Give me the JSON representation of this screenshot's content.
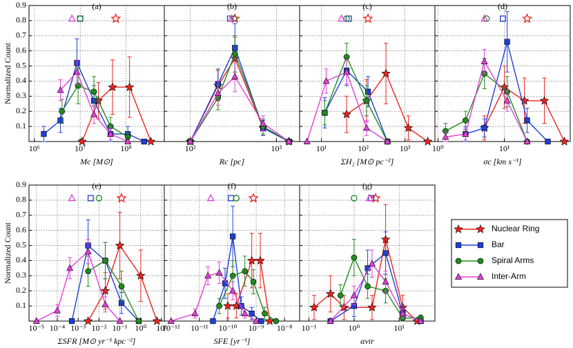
{
  "chart_data": [
    {
      "type": "line",
      "title": "(a)",
      "xlabel": "Mc [M⊙]",
      "ylabel": "Normalized Count",
      "xscale": "log",
      "xlim": [
        760000,
        690000000
      ],
      "xticks": [
        {
          "value": 1000000,
          "label": "10⁶"
        },
        {
          "value": 10000000,
          "label": "10⁷"
        },
        {
          "value": 100000000,
          "label": "10⁸"
        }
      ],
      "ylim": [
        0,
        0.9
      ],
      "yticks": [
        0.1,
        0.2,
        0.3,
        0.4,
        0.5,
        0.6,
        0.7,
        0.8,
        0.9
      ],
      "grid": true,
      "series": [
        {
          "color": "#e8241f",
          "marker": "star",
          "x": [
            11000000,
            25000000,
            51000000,
            120000000,
            350000000
          ],
          "values": [
            0,
            0.27,
            0.36,
            0.36,
            0
          ],
          "errors": [
            0,
            0.12,
            0.18,
            0.2,
            0
          ],
          "median": 60000000
        },
        {
          "color": "#1f3fd6",
          "marker": "square",
          "x": [
            1600000,
            3700000,
            8500000,
            20000000,
            46000000,
            110000000,
            250000000
          ],
          "values": [
            0.05,
            0.14,
            0.52,
            0.27,
            0.05,
            0.05,
            0
          ],
          "errors": [
            0.05,
            0.08,
            0.16,
            0.1,
            0.05,
            0.05,
            0
          ],
          "median": 10000000
        },
        {
          "color": "#1f8a1f",
          "marker": "circle",
          "x": [
            4000000,
            9000000,
            20000000,
            46000000,
            110000000
          ],
          "values": [
            0.2,
            0.37,
            0.33,
            0.1,
            0.03
          ],
          "errors": [
            0.08,
            0.12,
            0.1,
            0.06,
            0.03
          ],
          "median": 10000000
        },
        {
          "color": "#e23fd8",
          "marker": "triangle",
          "x": [
            3700000,
            8500000,
            20000000,
            46000000,
            110000000
          ],
          "values": [
            0.34,
            0.46,
            0.18,
            0.05,
            0
          ],
          "errors": [
            0.07,
            0.08,
            0.06,
            0.04,
            0
          ],
          "median": 6600000
        }
      ]
    },
    {
      "type": "line",
      "title": "(b)",
      "xlabel": "Rc [pc]",
      "xscale": "log",
      "xlim": [
        50,
        1860
      ],
      "xticks": [
        {
          "value": 100,
          "label": "10²"
        },
        {
          "value": 1000,
          "label": "10³"
        }
      ],
      "ylim": [
        0,
        0.9
      ],
      "yticks": [
        0.1,
        0.2,
        0.3,
        0.4,
        0.5,
        0.6,
        0.7,
        0.8,
        0.9
      ],
      "grid": true,
      "series": [
        {
          "color": "#e8241f",
          "marker": "star",
          "x": [
            100,
            210,
            330,
            700,
            1400
          ],
          "values": [
            0,
            0.37,
            0.55,
            0.09,
            0
          ],
          "errors": [
            0,
            0.1,
            0.14,
            0.05,
            0
          ],
          "median": 330
        },
        {
          "color": "#1f3fd6",
          "marker": "square",
          "x": [
            100,
            210,
            330,
            700,
            1400
          ],
          "values": [
            0,
            0.38,
            0.62,
            0.09,
            0
          ],
          "errors": [
            0,
            0.1,
            0.16,
            0.05,
            0
          ],
          "median": 290
        },
        {
          "color": "#1f8a1f",
          "marker": "circle",
          "x": [
            100,
            210,
            330,
            700,
            1400
          ],
          "values": [
            0,
            0.29,
            0.58,
            0.1,
            0
          ],
          "errors": [
            0,
            0.08,
            0.12,
            0.05,
            0
          ],
          "median": 320
        },
        {
          "color": "#e23fd8",
          "marker": "triangle",
          "x": [
            100,
            210,
            330,
            700,
            1400
          ],
          "values": [
            0,
            0.32,
            0.43,
            0.12,
            0
          ],
          "errors": [
            0,
            0.08,
            0.1,
            0.05,
            0
          ],
          "median": 300
        }
      ]
    },
    {
      "type": "line",
      "title": "(c)",
      "xlabel": "ΣH₂ [M⊙ pc⁻²]",
      "xscale": "log",
      "xlim": [
        3,
        5200
      ],
      "xticks": [
        {
          "value": 10,
          "label": "10¹"
        },
        {
          "value": 100,
          "label": "10²"
        },
        {
          "value": 1000,
          "label": "10³"
        }
      ],
      "ylim": [
        0,
        0.9
      ],
      "yticks": [
        0.1,
        0.2,
        0.3,
        0.4,
        0.5,
        0.6,
        0.7,
        0.8,
        0.9
      ],
      "grid": true,
      "series": [
        {
          "color": "#e8241f",
          "marker": "star",
          "x": [
            40,
            120,
            350,
            1200,
            3500
          ],
          "values": [
            0.18,
            0.27,
            0.45,
            0.09,
            0
          ],
          "errors": [
            0.12,
            0.14,
            0.2,
            0.08,
            0
          ],
          "median": 130
        },
        {
          "color": "#1f3fd6",
          "marker": "square",
          "x": [
            12,
            40,
            130,
            380
          ],
          "values": [
            0.19,
            0.47,
            0.33,
            0
          ],
          "errors": [
            0.1,
            0.1,
            0.1,
            0
          ],
          "median": 45
        },
        {
          "color": "#1f8a1f",
          "marker": "circle",
          "x": [
            12,
            40,
            120,
            380
          ],
          "values": [
            0.19,
            0.56,
            0.27,
            0
          ],
          "errors": [
            0.08,
            0.09,
            0.1,
            0
          ],
          "median": 40
        },
        {
          "color": "#e23fd8",
          "marker": "triangle",
          "x": [
            4.5,
            13,
            40,
            120,
            380
          ],
          "values": [
            0,
            0.4,
            0.46,
            0.09,
            0
          ],
          "errors": [
            0,
            0.08,
            0.08,
            0.05,
            0
          ],
          "median": 30
        }
      ]
    },
    {
      "type": "line",
      "title": "(d)",
      "xlabel": "σc [km s⁻¹]",
      "xscale": "log",
      "xlim": [
        0.9,
        98
      ],
      "xticks": [
        {
          "value": 1,
          "label": "10⁰"
        },
        {
          "value": 10,
          "label": "10¹"
        }
      ],
      "ylim": [
        0,
        0.9
      ],
      "yticks": [
        0.1,
        0.2,
        0.3,
        0.4,
        0.5,
        0.6,
        0.7,
        0.8,
        0.9
      ],
      "grid": true,
      "series": [
        {
          "color": "#e8241f",
          "marker": "star",
          "x": [
            5,
            10,
            20,
            40,
            80
          ],
          "values": [
            0.09,
            0.36,
            0.27,
            0.27,
            0
          ],
          "errors": [
            0.08,
            0.14,
            0.15,
            0.15,
            0
          ],
          "median": 22
        },
        {
          "color": "#1f3fd6",
          "marker": "square",
          "x": [
            2.6,
            5,
            11,
            22,
            45
          ],
          "values": [
            0.05,
            0.09,
            0.66,
            0.14,
            0
          ],
          "errors": [
            0.05,
            0.06,
            0.2,
            0.08,
            0
          ],
          "median": 9.5
        },
        {
          "color": "#1f8a1f",
          "marker": "circle",
          "x": [
            1.3,
            2.6,
            5,
            11,
            22
          ],
          "values": [
            0.07,
            0.14,
            0.45,
            0.33,
            0
          ],
          "errors": [
            0.05,
            0.06,
            0.1,
            0.1,
            0
          ],
          "median": 5.4
        },
        {
          "color": "#e23fd8",
          "marker": "triangle",
          "x": [
            1.3,
            2.6,
            5,
            11,
            22
          ],
          "values": [
            0.03,
            0.05,
            0.53,
            0.27,
            0
          ],
          "errors": [
            0.03,
            0.04,
            0.08,
            0.07,
            0
          ],
          "median": 5
        }
      ]
    },
    {
      "type": "line",
      "title": "(e)",
      "xlabel": "ΣSFR [M⊙ yr⁻¹ kpc⁻²]",
      "ylabel": "Normalized Count",
      "xscale": "log",
      "xlim": [
        4.4e-06,
        13.5
      ],
      "xticks": [
        {
          "value": 1e-05,
          "label": "10⁻⁵"
        },
        {
          "value": 0.0001,
          "label": "10⁻⁴"
        },
        {
          "value": 0.001,
          "label": "10⁻³"
        },
        {
          "value": 0.01,
          "label": "10⁻²"
        },
        {
          "value": 0.1,
          "label": "10⁻¹"
        },
        {
          "value": 1,
          "label": "10⁰"
        },
        {
          "value": 10,
          "label": "10¹"
        }
      ],
      "ylim": [
        0,
        0.9
      ],
      "yticks": [
        0.1,
        0.2,
        0.3,
        0.4,
        0.5,
        0.6,
        0.7,
        0.8,
        0.9
      ],
      "grid": true,
      "series": [
        {
          "color": "#e8241f",
          "marker": "star",
          "x": [
            0.003,
            0.02,
            0.1,
            1,
            6
          ],
          "values": [
            0,
            0.2,
            0.5,
            0.3,
            0
          ],
          "errors": [
            0,
            0.12,
            0.22,
            0.17,
            0
          ],
          "median": 0.12
        },
        {
          "color": "#1f3fd6",
          "marker": "square",
          "x": [
            0.0005,
            0.003,
            0.02,
            0.12,
            0.8
          ],
          "values": [
            0,
            0.5,
            0.4,
            0.12,
            0
          ],
          "errors": [
            0,
            0.17,
            0.12,
            0.07,
            0
          ],
          "median": 0.004
        },
        {
          "color": "#1f8a1f",
          "marker": "circle",
          "x": [
            0.003,
            0.02,
            0.12,
            0.8
          ],
          "values": [
            0.33,
            0.4,
            0.23,
            0
          ],
          "errors": [
            0.1,
            0.12,
            0.1,
            0
          ],
          "median": 0.01
        },
        {
          "color": "#e23fd8",
          "marker": "triangle",
          "x": [
            1e-05,
            0.0001,
            0.0004,
            0.003,
            0.02,
            0.1
          ],
          "values": [
            0,
            0.07,
            0.35,
            0.46,
            0.11,
            0
          ],
          "errors": [
            0,
            0.04,
            0.07,
            0.08,
            0.05,
            0
          ],
          "median": 0.0005
        }
      ]
    },
    {
      "type": "line",
      "title": "(f)",
      "xlabel": "SFE [yr⁻¹]",
      "xscale": "log",
      "xlim": [
        5.8e-13,
        3.4e-08
      ],
      "xticks": [
        {
          "value": 1e-12,
          "label": "10⁻¹²"
        },
        {
          "value": 1e-11,
          "label": "10⁻¹¹"
        },
        {
          "value": 1e-10,
          "label": "10⁻¹⁰"
        },
        {
          "value": 1e-09,
          "label": "10⁻⁹"
        },
        {
          "value": 1e-08,
          "label": "10⁻⁸"
        }
      ],
      "ylim": [
        0,
        0.9
      ],
      "yticks": [
        0.1,
        0.2,
        0.3,
        0.4,
        0.5,
        0.6,
        0.7,
        0.8,
        0.9
      ],
      "grid": true,
      "series": [
        {
          "color": "#e8241f",
          "marker": "star",
          "x": [
            1e-10,
            2e-10,
            7e-10,
            1.4e-09,
            3e-09
          ],
          "values": [
            0.1,
            0.1,
            0.4,
            0.4,
            0
          ],
          "errors": [
            0.08,
            0.08,
            0.18,
            0.18,
            0
          ],
          "median": 8e-10
        },
        {
          "color": "#1f3fd6",
          "marker": "square",
          "x": [
            3e-11,
            8e-11,
            1.5e-10,
            3e-10,
            7e-10,
            1.5e-09
          ],
          "values": [
            0,
            0.25,
            0.56,
            0.1,
            0.05,
            0
          ],
          "errors": [
            0,
            0.1,
            0.2,
            0.06,
            0.04,
            0
          ],
          "median": 1.3e-10
        },
        {
          "color": "#1f8a1f",
          "marker": "circle",
          "x": [
            5e-11,
            1.5e-10,
            4e-10,
            8e-10,
            2e-09,
            5e-09
          ],
          "values": [
            0.1,
            0.3,
            0.33,
            0.26,
            0.05,
            0
          ],
          "errors": [
            0.05,
            0.1,
            0.1,
            0.08,
            0.04,
            0
          ],
          "median": 2e-10
        },
        {
          "color": "#e23fd8",
          "marker": "triangle",
          "x": [
            1e-12,
            7e-12,
            2e-11,
            5e-11,
            1.5e-10,
            4e-10,
            1e-09
          ],
          "values": [
            0,
            0.05,
            0.3,
            0.32,
            0.2,
            0.05,
            0
          ],
          "errors": [
            0,
            0.03,
            0.06,
            0.07,
            0.06,
            0.03,
            0
          ],
          "median": 2.5e-11
        }
      ]
    },
    {
      "type": "line",
      "title": "(g)",
      "xlabel": "αvir",
      "xscale": "log",
      "legend": "outside right",
      "xlim": [
        0.062,
        62
      ],
      "xticks": [
        {
          "value": 0.1,
          "label": "10⁻¹"
        },
        {
          "value": 1,
          "label": "10⁰"
        },
        {
          "value": 10,
          "label": "10¹"
        }
      ],
      "ylim": [
        0,
        0.9
      ],
      "yticks": [
        0.1,
        0.2,
        0.3,
        0.4,
        0.5,
        0.6,
        0.7,
        0.8,
        0.9
      ],
      "grid": true,
      "series": [
        {
          "name": "Nuclear Ring",
          "color": "#e8241f",
          "marker": "star",
          "x": [
            0.13,
            0.3,
            0.6,
            2.5,
            5,
            12,
            25
          ],
          "values": [
            0.09,
            0.18,
            0.09,
            0.09,
            0.54,
            0.09,
            0
          ],
          "errors": [
            0.08,
            0.12,
            0.08,
            0.08,
            0.23,
            0.08,
            0
          ],
          "median": 3
        },
        {
          "name": "Bar",
          "color": "#1f3fd6",
          "marker": "square",
          "x": [
            0.3,
            1,
            2,
            5,
            12,
            30
          ],
          "values": [
            0,
            0.1,
            0.35,
            0.45,
            0.05,
            0
          ],
          "errors": [
            0,
            0.07,
            0.12,
            0.14,
            0.04,
            0
          ],
          "median": 2.4
        },
        {
          "name": "Spiral Arms",
          "color": "#1f8a1f",
          "marker": "circle",
          "x": [
            0.5,
            1,
            2,
            5,
            12,
            30
          ],
          "values": [
            0.17,
            0.42,
            0.23,
            0.2,
            0.02,
            0.02
          ],
          "errors": [
            0.07,
            0.12,
            0.08,
            0.08,
            0.02,
            0.02
          ],
          "median": 1
        },
        {
          "name": "Inter-Arm",
          "color": "#e23fd8",
          "marker": "triangle",
          "x": [
            0.3,
            1,
            2.5,
            5,
            12,
            30
          ],
          "values": [
            0,
            0.17,
            0.38,
            0.26,
            0.05,
            0
          ],
          "errors": [
            0,
            0.06,
            0.09,
            0.07,
            0.03,
            0
          ],
          "median": 2.2
        }
      ]
    }
  ]
}
